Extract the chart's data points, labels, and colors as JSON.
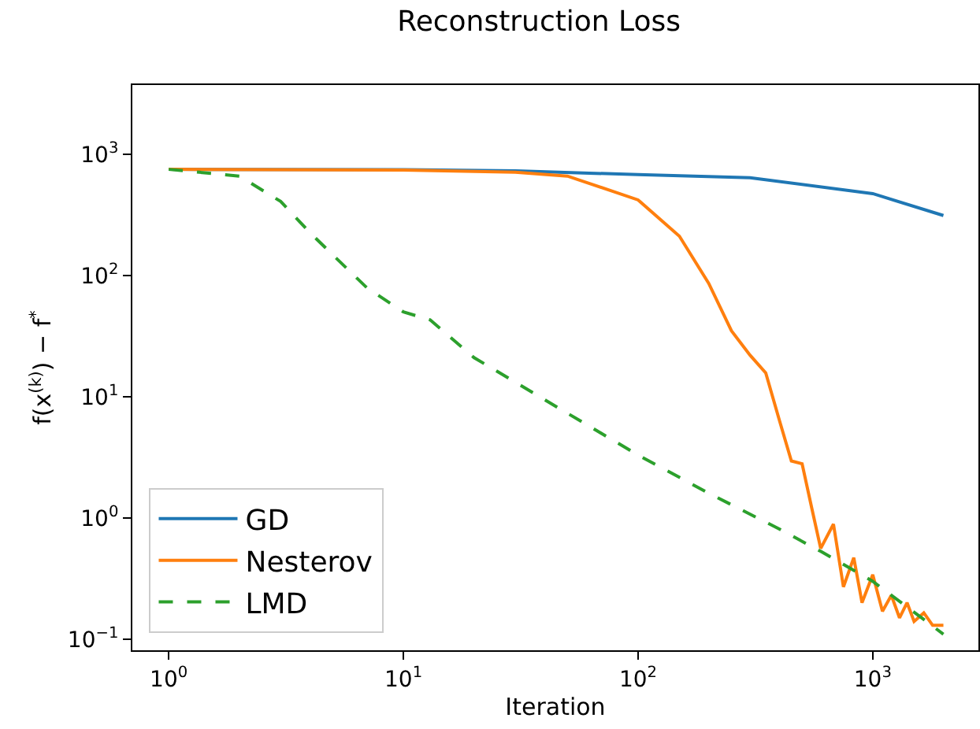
{
  "chart_data": {
    "type": "line",
    "title": "Reconstruction Loss",
    "xlabel": "Iteration",
    "ylabel": "f(x$^{(k)}$) − f$^{*}$",
    "log": "xy",
    "xlim": [
      0.7,
      2820
    ],
    "ylim": [
      0.081,
      3720
    ],
    "legend": "bottom left",
    "marker": "none",
    "xticks": [
      {
        "value": 1,
        "label": "10$^{0}$"
      },
      {
        "value": 10,
        "label": "10$^{1}$"
      },
      {
        "value": 100,
        "label": "10$^{2}$"
      },
      {
        "value": 1000,
        "label": "10$^{3}$"
      }
    ],
    "yticks": [
      {
        "value": 0.1,
        "label": "10$^{−1}$"
      },
      {
        "value": 1,
        "label": "10$^{0}$"
      },
      {
        "value": 10,
        "label": "10$^{1}$"
      },
      {
        "value": 100,
        "label": "10$^{2}$"
      },
      {
        "value": 1000,
        "label": "10$^{3}$"
      }
    ],
    "series": [
      {
        "name": "GD",
        "color": "#1f77b4",
        "line_style": "solid",
        "x": [
          1,
          10,
          30,
          100,
          300,
          1000,
          2000
        ],
        "values": [
          750,
          745,
          730,
          678,
          640,
          473,
          312
        ]
      },
      {
        "name": "Nesterov",
        "color": "#ff7f0e",
        "line_style": "solid",
        "x": [
          1,
          10,
          30,
          50,
          100,
          150,
          200,
          250,
          300,
          350,
          400,
          450,
          500,
          550,
          600,
          680,
          750,
          830,
          900,
          1000,
          1100,
          1200,
          1300,
          1400,
          1500,
          1650,
          1800,
          2000
        ],
        "values": [
          750,
          740,
          710,
          660,
          420,
          211,
          86,
          35,
          22,
          15.7,
          6.4,
          2.95,
          2.8,
          1.2,
          0.56,
          0.89,
          0.27,
          0.47,
          0.2,
          0.34,
          0.17,
          0.23,
          0.15,
          0.2,
          0.14,
          0.165,
          0.13,
          0.13
        ]
      },
      {
        "name": "LMD",
        "color": "#2ca02c",
        "line_style": "dashed",
        "x": [
          1,
          2,
          3,
          4,
          5,
          7,
          10,
          13,
          20,
          50,
          100,
          200,
          400,
          600,
          1000,
          2000
        ],
        "values": [
          750,
          660,
          408,
          225,
          148,
          79,
          50,
          43,
          21,
          7.3,
          3.3,
          1.6,
          0.81,
          0.53,
          0.3,
          0.11
        ]
      }
    ]
  }
}
